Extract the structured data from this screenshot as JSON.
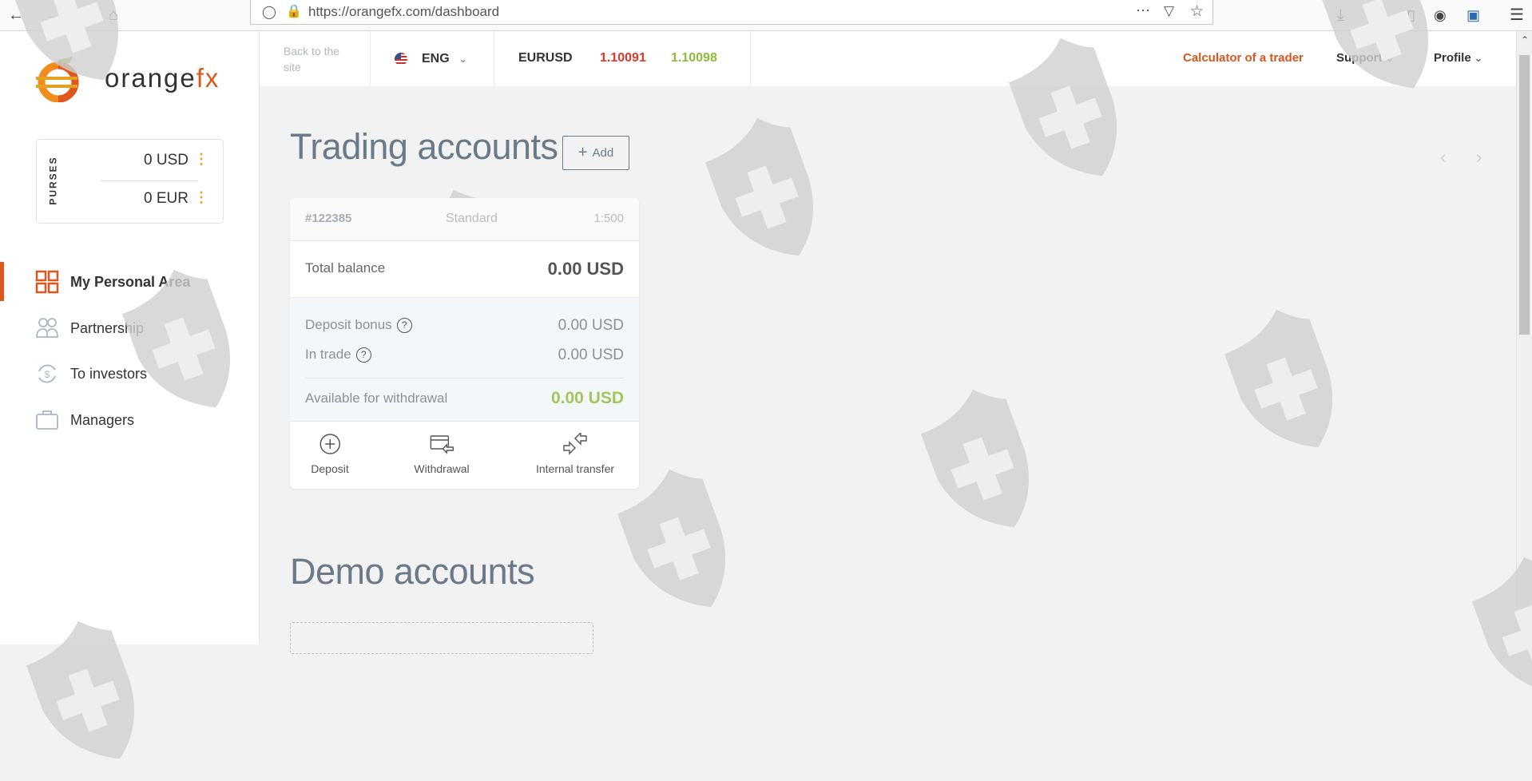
{
  "browser": {
    "url": "https://orangefx.com/dashboard"
  },
  "brand": {
    "name_part1": "orange",
    "name_part2": "fx",
    "accent": "#e0561c"
  },
  "purses": {
    "label": "PURSES",
    "items": [
      {
        "amount": "0 USD"
      },
      {
        "amount": "0 EUR"
      }
    ]
  },
  "sidebar": {
    "items": [
      {
        "label": "My Personal Area",
        "icon": "grid-icon",
        "active": true
      },
      {
        "label": "Partnership",
        "icon": "people-icon"
      },
      {
        "label": "To investors",
        "icon": "dollar-exchange-icon"
      },
      {
        "label": "Managers",
        "icon": "briefcase-icon"
      }
    ]
  },
  "header": {
    "back_link": "Back to the site",
    "language": "ENG",
    "ticker": {
      "symbol": "EURUSD",
      "bid": "1.10091",
      "ask": "1.10098",
      "bid_color": "#d9382d",
      "ask_color": "#8dbb3a"
    },
    "calculator": "Calculator of a trader",
    "support": "Support",
    "profile": "Profile"
  },
  "trading": {
    "title": "Trading accounts",
    "add_label": "Add",
    "account": {
      "number": "#122385",
      "type": "Standard",
      "leverage": "1:500",
      "total_balance_label": "Total balance",
      "total_balance": "0.00 USD",
      "deposit_bonus_label": "Deposit bonus",
      "deposit_bonus": "0.00 USD",
      "in_trade_label": "In trade",
      "in_trade": "0.00 USD",
      "available_label": "Available for withdrawal",
      "available": "0.00 USD",
      "actions": [
        {
          "label": "Deposit"
        },
        {
          "label": "Withdrawal"
        },
        {
          "label": "Internal transfer"
        }
      ]
    }
  },
  "demo": {
    "title": "Demo accounts"
  }
}
